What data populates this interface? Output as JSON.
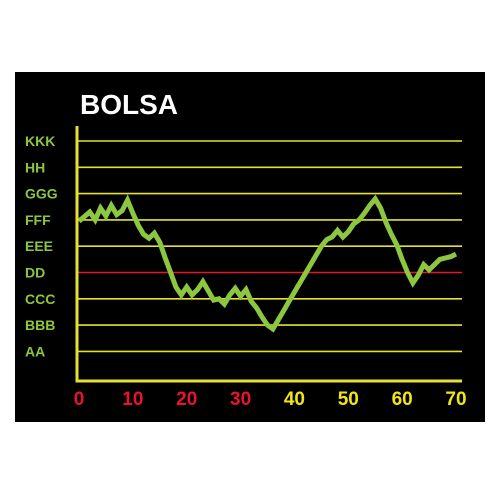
{
  "colors": {
    "background": "#000000",
    "grid": "#e6e22a",
    "reference_line": "#e8142a",
    "series": "#8dc63f",
    "axis": "#e6e22a",
    "title": "#ffffff",
    "y_label": "#8dc63f",
    "x_label_red": "#e8142a",
    "x_label_yellow": "#f2e512"
  },
  "chart_data": {
    "type": "line",
    "title": "BOLSA",
    "xlabel": "",
    "ylabel": "",
    "xlim": [
      0,
      70
    ],
    "x_ticks": [
      {
        "value": 0,
        "label": "0",
        "color": "red"
      },
      {
        "value": 10,
        "label": "10",
        "color": "red"
      },
      {
        "value": 20,
        "label": "20",
        "color": "red"
      },
      {
        "value": 30,
        "label": "30",
        "color": "red"
      },
      {
        "value": 40,
        "label": "40",
        "color": "yellow"
      },
      {
        "value": 50,
        "label": "50",
        "color": "yellow"
      },
      {
        "value": 60,
        "label": "60",
        "color": "yellow"
      },
      {
        "value": 70,
        "label": "70",
        "color": "yellow"
      }
    ],
    "y_categories": [
      "AA",
      "BBB",
      "CCC",
      "DD",
      "EEE",
      "FFF",
      "GGG",
      "HH",
      "KKK"
    ],
    "y_lim": [
      -0.5,
      8.5
    ],
    "reference_category": "DD",
    "grid": true,
    "series": [
      {
        "x": [
          0,
          2,
          3,
          4,
          5,
          6,
          7,
          8,
          9,
          10,
          11,
          12,
          13,
          14,
          15,
          16,
          17,
          18,
          19,
          20,
          21,
          22,
          23,
          24,
          25,
          26,
          27,
          28,
          29,
          30,
          31,
          32,
          33,
          34,
          35,
          36,
          37,
          38,
          39,
          40,
          41,
          42,
          43,
          44,
          45,
          46,
          47,
          48,
          49,
          50,
          51,
          52,
          53,
          54,
          55,
          56,
          57,
          58,
          59,
          60,
          61,
          62,
          63,
          64,
          65,
          66,
          67,
          68,
          69,
          70
        ],
        "values": [
          4.95,
          5.3,
          5.0,
          5.45,
          5.15,
          5.55,
          5.2,
          5.35,
          5.75,
          5.25,
          4.8,
          4.45,
          4.3,
          4.5,
          4.15,
          3.55,
          3.0,
          2.45,
          2.15,
          2.45,
          2.15,
          2.35,
          2.65,
          2.3,
          1.95,
          2.0,
          1.8,
          2.15,
          2.4,
          2.1,
          2.35,
          1.9,
          1.65,
          1.3,
          1.0,
          0.85,
          1.2,
          1.55,
          1.9,
          2.25,
          2.6,
          2.95,
          3.3,
          3.65,
          4.0,
          4.25,
          4.35,
          4.6,
          4.35,
          4.55,
          4.85,
          5.0,
          5.25,
          5.55,
          5.8,
          5.45,
          4.9,
          4.45,
          4.05,
          3.5,
          3.0,
          2.6,
          2.9,
          3.3,
          3.1,
          3.3,
          3.5,
          3.55,
          3.6,
          3.7
        ]
      }
    ]
  }
}
